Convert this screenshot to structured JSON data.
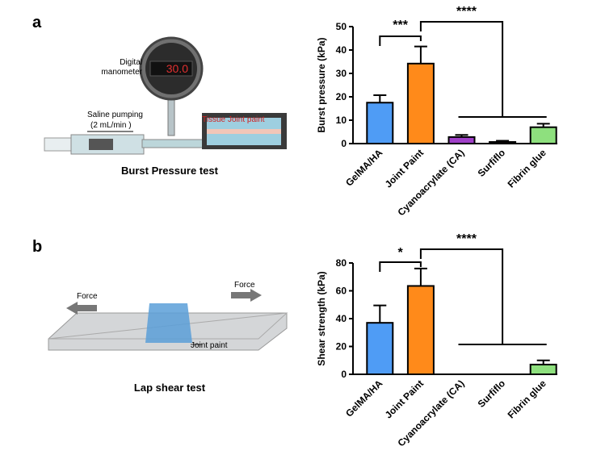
{
  "figure": {
    "panel_labels": [
      "a",
      "b"
    ],
    "illustrations": [
      {
        "caption": "Burst Pressure test",
        "labels": [
          "Digital",
          "manometer",
          "Saline pumping",
          "(2 mL/min )",
          "Tissue",
          "Joint paint",
          "30.0"
        ]
      },
      {
        "caption": "Lap shear test",
        "labels": [
          "Force",
          "Force",
          "Joint paint"
        ]
      }
    ]
  },
  "chart_data": [
    {
      "type": "bar",
      "ylabel": "Burst pressure (kPa)",
      "categories": [
        "GelMA/HA",
        "Joint Paint",
        "Cyanoacrylate (CA)",
        "Surfiflo",
        "Fibrin glue"
      ],
      "values": [
        17.5,
        34.2,
        2.8,
        0.7,
        7.0
      ],
      "errors": [
        3.2,
        7.3,
        0.9,
        0.5,
        1.5
      ],
      "colors": [
        "#4f9cf5",
        "#ff8a1a",
        "#a040c8",
        "#b03040",
        "#8ee07e"
      ],
      "ylim": [
        0,
        50
      ],
      "yticks": [
        0,
        10,
        20,
        30,
        40,
        50
      ],
      "significance": [
        "***",
        "****"
      ]
    },
    {
      "type": "bar",
      "ylabel": "Shear strength (kPa)",
      "categories": [
        "GelMA/HA",
        "Joint Paint",
        "Cyanoacrylate (CA)",
        "Surfiflo",
        "Fibrin glue"
      ],
      "values": [
        37,
        63.5,
        0,
        0,
        7
      ],
      "errors": [
        12.5,
        12.5,
        0,
        0,
        3
      ],
      "colors": [
        "#4f9cf5",
        "#ff8a1a",
        "#a040c8",
        "#b03040",
        "#8ee07e"
      ],
      "ylim": [
        0,
        80
      ],
      "yticks": [
        0,
        20,
        40,
        60,
        80
      ],
      "significance": [
        "*",
        "****"
      ]
    }
  ]
}
